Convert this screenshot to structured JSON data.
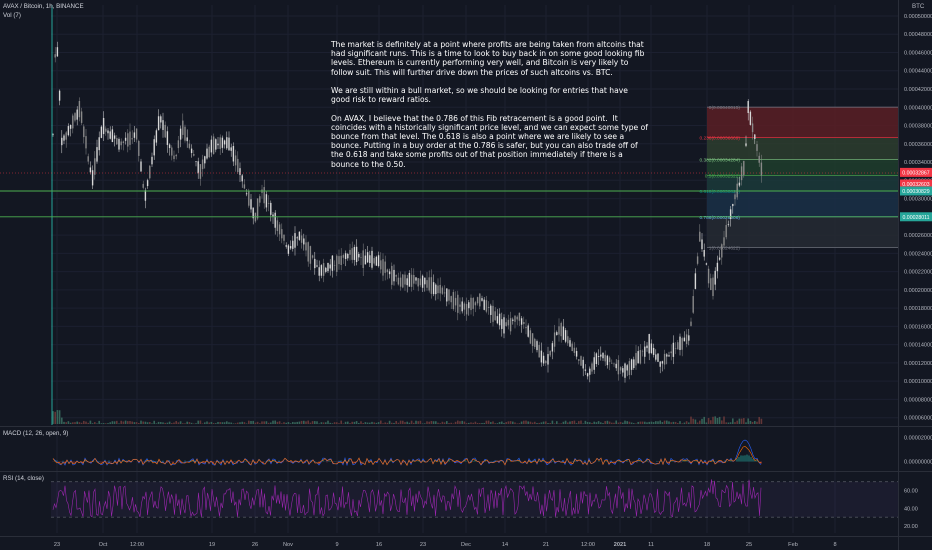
{
  "header": {
    "symbol": "AVAX / Bitcoin, 1h, BINANCE",
    "volume": "Vol (7)",
    "currency": "BTC"
  },
  "note": {
    "paragraph1": "The market is definitely at a point where profits are being taken from altcoins that had significant runs. This is a time to look to buy back in on some good looking fib levels. Ethereum is currently performing very well, and Bitcoin is very likely to follow suit. This will further drive down the prices of such altcoins vs. BTC.",
    "paragraph2": "We are still within a bull market, so we should be looking for entries that have good risk to reward ratios.",
    "paragraph3": "On AVAX, I believe that the 0.786 of this Fib retracement is a good point.  It coincides with a historically significant price level, and we can expect some type of bounce from that level. The 0.618 is also a point where we are likely to see a bounce. Putting in a buy order at the 0.786 is safer, but you can also trade off of the 0.618 and take some profits out of that position immediately if there is a bounce to the 0.50."
  },
  "indicators": {
    "macd_label": "MACD (12, 26, open, 9)",
    "rsi_label": "RSI (14, close)"
  },
  "colors": {
    "background": "#131722",
    "candle_up": "#d8d8d8",
    "candle_down": "#8a8a8a",
    "fib_0": "#787b86",
    "fib_0236": "#f23645",
    "fib_0382": "#81c784",
    "fib_05": "#4caf50",
    "fib_0618": "#009688",
    "fib_0786": "#64b5f6",
    "fib_1": "#787b86",
    "horizontal_line": "#4caf50",
    "rsi": "#9c27b0",
    "macd": "#2962ff",
    "signal": "#ff6d00",
    "price_tag_red": "#f23645",
    "price_tag_green": "#26a69a"
  },
  "chart_data": [
    {
      "type": "candlestick",
      "title": "AVAX / Bitcoin, 1h, BINANCE",
      "y_axis_ticks": [
        "0.00050000",
        "0.00048000",
        "0.00046000",
        "0.00044000",
        "0.00042000",
        "0.00040000",
        "0.00038000",
        "0.00036000",
        "0.00034000",
        "0.00032000",
        "0.00030000",
        "0.00028000",
        "0.00026000",
        "0.00024000",
        "0.00022000",
        "0.00020000",
        "0.00018000",
        "0.00016000",
        "0.00014000",
        "0.00012000",
        "0.00010000",
        "0.00008000",
        "0.00006000"
      ],
      "ylim": [
        5.2e-05,
        0.000512
      ],
      "x_axis_ticks": [
        "23",
        "Oct",
        "12:00",
        "19",
        "26",
        "Nov",
        "9",
        "16",
        "23",
        "Dec",
        "14",
        "21",
        "12:00",
        "2021",
        "11",
        "18",
        "25",
        "Feb",
        "8"
      ],
      "price_path": [
        [
          "23",
          0.00033
        ],
        [
          "Oct",
          0.00038
        ],
        [
          "12:00",
          0.00037
        ],
        [
          "19",
          0.00036
        ],
        [
          "26",
          0.00028
        ],
        [
          "Nov",
          0.000245
        ],
        [
          "9",
          0.00023
        ],
        [
          "16",
          0.00023
        ],
        [
          "23",
          0.00021
        ],
        [
          "Dec",
          0.00018
        ],
        [
          "14",
          0.00016
        ],
        [
          "21",
          0.00012
        ],
        [
          "12:00",
          0.000108
        ],
        [
          "2021",
          0.00014
        ],
        [
          "11",
          0.00026
        ],
        [
          "18",
          0.00040015
        ],
        [
          "18",
          0.00033
        ]
      ],
      "fib_retracement": [
        {
          "level": "0",
          "price": 0.00040015,
          "label": "0(0.00040015)"
        },
        {
          "level": "0.236",
          "price": 0.00036669,
          "label": "0.236(0.00036669)"
        },
        {
          "level": "0.382",
          "price": 0.00034284,
          "label": "0.382(0.00034284)"
        },
        {
          "level": "0.5",
          "price": 0.00032522,
          "label": "0.5(0.00032522)"
        },
        {
          "level": "0.618",
          "price": 0.00030829,
          "label": "0.618(0.00030829)"
        },
        {
          "level": "0.786",
          "price": 0.00028006,
          "label": "0.786(0.00028006)"
        },
        {
          "level": "1",
          "price": 0.00024622,
          "label": "1(0.00024622)"
        }
      ],
      "horizontal_lines": [
        0.00030829,
        0.00028006
      ],
      "price_tags": [
        {
          "text": "0.00032867",
          "price": 0.00032867,
          "color": "red"
        },
        {
          "text": "0.00032603",
          "price": 0.000316,
          "color": "red"
        },
        {
          "text": "0.00030829",
          "price": 0.00030829,
          "color": "green"
        },
        {
          "text": "0.00028011",
          "price": 0.00028006,
          "color": "green"
        }
      ]
    },
    {
      "type": "line",
      "title": "MACD (12, 26, open, 9)",
      "y_axis_ticks": [
        "0.00002000",
        "0.00000000"
      ],
      "ylim": [
        -7e-06,
        2.8e-05
      ]
    },
    {
      "type": "line",
      "title": "RSI (14, close)",
      "y_axis_ticks": [
        "60.00",
        "40.00",
        "20.00"
      ],
      "ylim": [
        12,
        80
      ],
      "bands": [
        70,
        30
      ]
    }
  ]
}
